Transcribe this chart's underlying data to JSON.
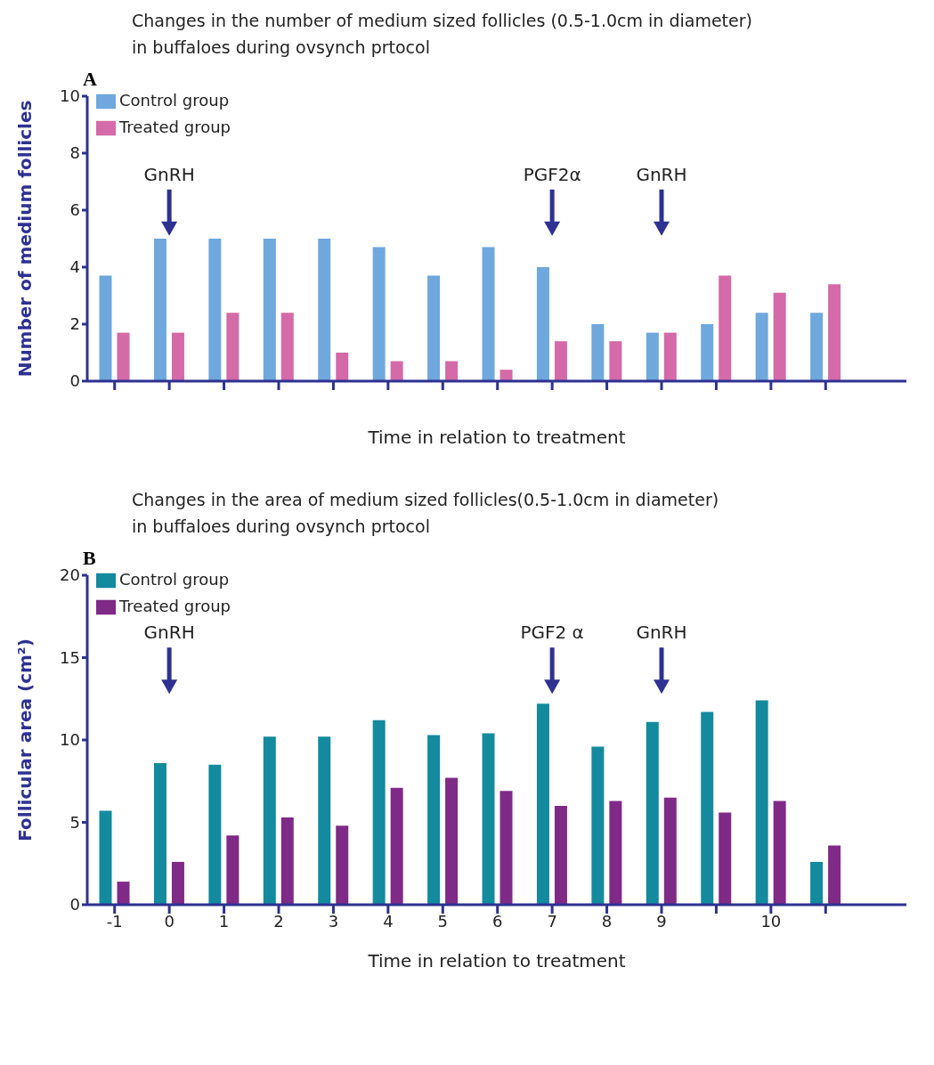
{
  "chart_data": [
    {
      "type": "bar",
      "title": "Changes in the number of medium sized follicles (0.5-1.0cm in diameter)\nin buffaloes during ovsynch prtocol",
      "xlabel": "Time in relation to treatment",
      "ylabel": "Number of medium follicles",
      "categories": [
        null,
        null,
        null,
        null,
        null,
        null,
        null,
        null,
        null,
        null,
        null,
        null,
        null,
        null
      ],
      "series": [
        {
          "name": "Control group",
          "color": "#6fa8dc",
          "values": [
            3.7,
            5.0,
            5.0,
            5.0,
            5.0,
            4.7,
            3.7,
            4.7,
            4.0,
            2.0,
            1.7,
            2.0,
            2.4,
            2.4
          ]
        },
        {
          "name": "Treated group",
          "color": "#d46aa8",
          "values": [
            1.7,
            1.7,
            2.4,
            2.4,
            1.0,
            0.7,
            0.7,
            0.4,
            1.4,
            1.4,
            1.7,
            3.7,
            3.1,
            3.4
          ]
        }
      ],
      "ylim": [
        0,
        10
      ],
      "yticks": [
        0,
        2,
        4,
        6,
        8,
        10
      ],
      "tick_labels": "y",
      "legend": "top left",
      "annotations": [
        "A",
        "GnRH",
        "PGF2α",
        "GnRH"
      ]
    },
    {
      "type": "bar",
      "title": "Changes in the area of medium sized follicles(0.5-1.0cm in diameter)\nin buffaloes during ovsynch prtocol",
      "xlabel": "Time in relation to treatment",
      "ylabel": "Follicular area (cm²)",
      "categories": [
        "-1",
        "0",
        "1",
        "2",
        "3",
        "4",
        "5",
        "6",
        "7",
        "8",
        "9",
        null,
        "10",
        null
      ],
      "series": [
        {
          "name": "Control group",
          "color": "#138a9e",
          "values": [
            5.7,
            8.6,
            8.5,
            10.2,
            10.2,
            11.2,
            10.3,
            10.4,
            12.2,
            9.6,
            11.1,
            11.7,
            12.4,
            2.6
          ]
        },
        {
          "name": "Treated group",
          "color": "#7f2a86",
          "values": [
            1.4,
            2.6,
            4.2,
            5.3,
            4.8,
            7.1,
            7.7,
            6.9,
            6.0,
            6.3,
            6.5,
            5.6,
            6.3,
            3.6
          ]
        }
      ],
      "ylim": [
        0,
        20
      ],
      "yticks": [
        0,
        5,
        10,
        15,
        20
      ],
      "legend": "top left",
      "annotations": [
        "B",
        "GnRH",
        "PGF2 α",
        "GnRH"
      ]
    }
  ]
}
